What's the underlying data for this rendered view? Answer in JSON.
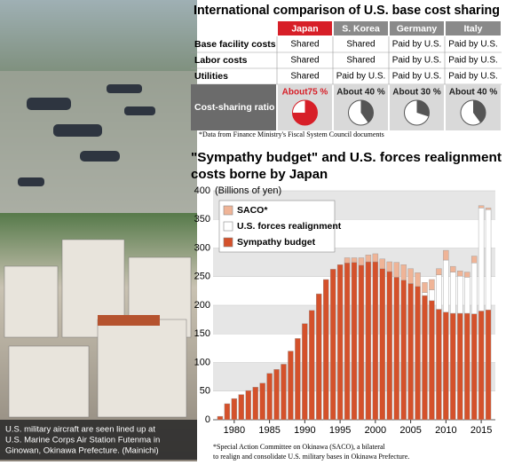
{
  "photo": {
    "caption": [
      "U.S. military aircraft are seen lined up at",
      "U.S. Marine Corps Air Station Futenma in",
      "Ginowan, Okinawa Prefecture. (Mainichi)"
    ]
  },
  "table": {
    "title": "International comparison of U.S. base cost sharing",
    "columns": [
      "Japan",
      "S. Korea",
      "Germany",
      "Italy"
    ],
    "rows": [
      {
        "label": "Base facility costs",
        "cells": [
          "Shared",
          "Shared",
          "Paid by U.S.",
          "Paid by U.S."
        ]
      },
      {
        "label": "Labor costs",
        "cells": [
          "Shared",
          "Shared",
          "Paid by U.S.",
          "Paid by U.S."
        ]
      },
      {
        "label": "Utilities",
        "cells": [
          "Shared",
          "Paid by U.S.",
          "Paid by U.S.",
          "Paid by U.S."
        ]
      }
    ],
    "ratio": {
      "label": "Cost-sharing ratio",
      "cells": [
        {
          "value": 75,
          "label": "About75 %"
        },
        {
          "value": 40,
          "label": "About 40 %"
        },
        {
          "value": 30,
          "label": "About 30 %"
        },
        {
          "value": 40,
          "label": "About 40 %"
        }
      ]
    },
    "note": "*Data from Finance Ministry's Fiscal System Council documents"
  },
  "chart_data": {
    "type": "stacked_bar",
    "title": [
      "\"Sympathy budget\" and U.S. forces realignment",
      "costs borne by Japan"
    ],
    "y_label": "(Billions of yen)",
    "x": [
      1978,
      1979,
      1980,
      1981,
      1982,
      1983,
      1984,
      1985,
      1986,
      1987,
      1988,
      1989,
      1990,
      1991,
      1992,
      1993,
      1994,
      1995,
      1996,
      1997,
      1998,
      1999,
      2000,
      2001,
      2002,
      2003,
      2004,
      2005,
      2006,
      2007,
      2008,
      2009,
      2010,
      2011,
      2012,
      2013,
      2014,
      2015,
      2016
    ],
    "xlim": [
      1977,
      2017
    ],
    "xticks": [
      1980,
      1985,
      1990,
      1995,
      2000,
      2005,
      2010,
      2015
    ],
    "ylim": [
      0,
      400
    ],
    "yticks": [
      0,
      50,
      100,
      150,
      200,
      250,
      300,
      350,
      400
    ],
    "grid": true,
    "series": [
      {
        "name": "Sympathy budget",
        "color": "#d4512b",
        "values": [
          6,
          28,
          37,
          44,
          51,
          57,
          64,
          81,
          88,
          97,
          120,
          142,
          168,
          191,
          220,
          245,
          263,
          271,
          274,
          275,
          270,
          276,
          276,
          264,
          259,
          249,
          244,
          238,
          233,
          217,
          208,
          193,
          188,
          186,
          186,
          186,
          185,
          190,
          192
        ]
      },
      {
        "name": "U.S. forces realignment",
        "color": "#ffffff",
        "values": [
          null,
          null,
          null,
          null,
          null,
          null,
          null,
          null,
          null,
          null,
          null,
          null,
          null,
          null,
          null,
          null,
          null,
          null,
          null,
          null,
          null,
          null,
          null,
          null,
          null,
          null,
          null,
          null,
          null,
          5,
          19,
          60,
          91,
          72,
          65,
          63,
          89,
          180,
          175
        ]
      },
      {
        "name": "SACO*",
        "color": "#efb497",
        "values": [
          null,
          null,
          null,
          null,
          null,
          null,
          null,
          null,
          null,
          null,
          null,
          null,
          null,
          null,
          null,
          null,
          null,
          null,
          9,
          8,
          13,
          12,
          14,
          17,
          17,
          26,
          27,
          26,
          24,
          18,
          18,
          11,
          17,
          10,
          9,
          9,
          12,
          4,
          3
        ]
      }
    ],
    "legend_order": [
      "SACO*",
      "U.S. forces realignment",
      "Sympathy budget"
    ],
    "legend": "upper left",
    "footnote": [
      "*Special Action Committee on Okinawa (SACO), a bilateral",
      "to realign and consolidate U.S. military bases in Okinawa Prefecture."
    ]
  }
}
